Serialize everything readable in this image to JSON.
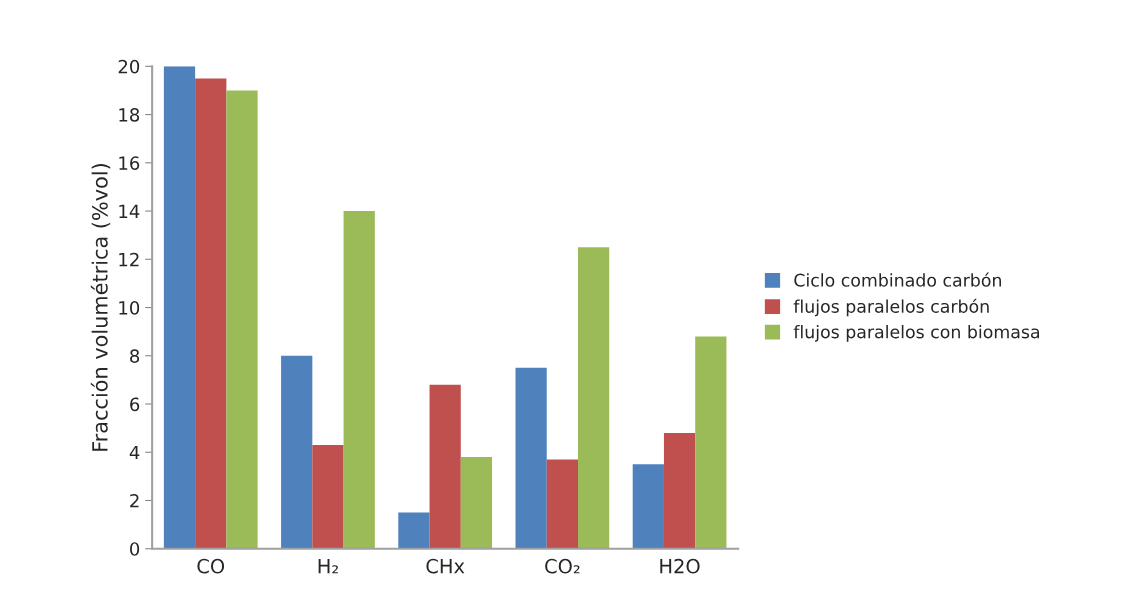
{
  "chart_data": {
    "type": "bar",
    "ylabel": "Fracción volumétrica (%vol)",
    "categories": [
      "CO",
      "H₂",
      "CHx",
      "CO₂",
      "H2O"
    ],
    "series": [
      {
        "name": "Ciclo combinado carbón",
        "color": "#4f81bd",
        "values": [
          20.0,
          8.0,
          1.5,
          7.5,
          3.5
        ]
      },
      {
        "name": "flujos paralelos carbón",
        "color": "#c0504d",
        "values": [
          19.5,
          4.3,
          6.8,
          3.7,
          4.8
        ]
      },
      {
        "name": "flujos paralelos con biomasa",
        "color": "#9bbb59",
        "values": [
          19.0,
          14.0,
          3.8,
          12.5,
          8.8
        ]
      }
    ],
    "ylim": [
      0,
      20
    ],
    "yticks": [
      0,
      2,
      4,
      6,
      8,
      10,
      12,
      14,
      16,
      18,
      20
    ],
    "grid": false,
    "legend": "right"
  }
}
